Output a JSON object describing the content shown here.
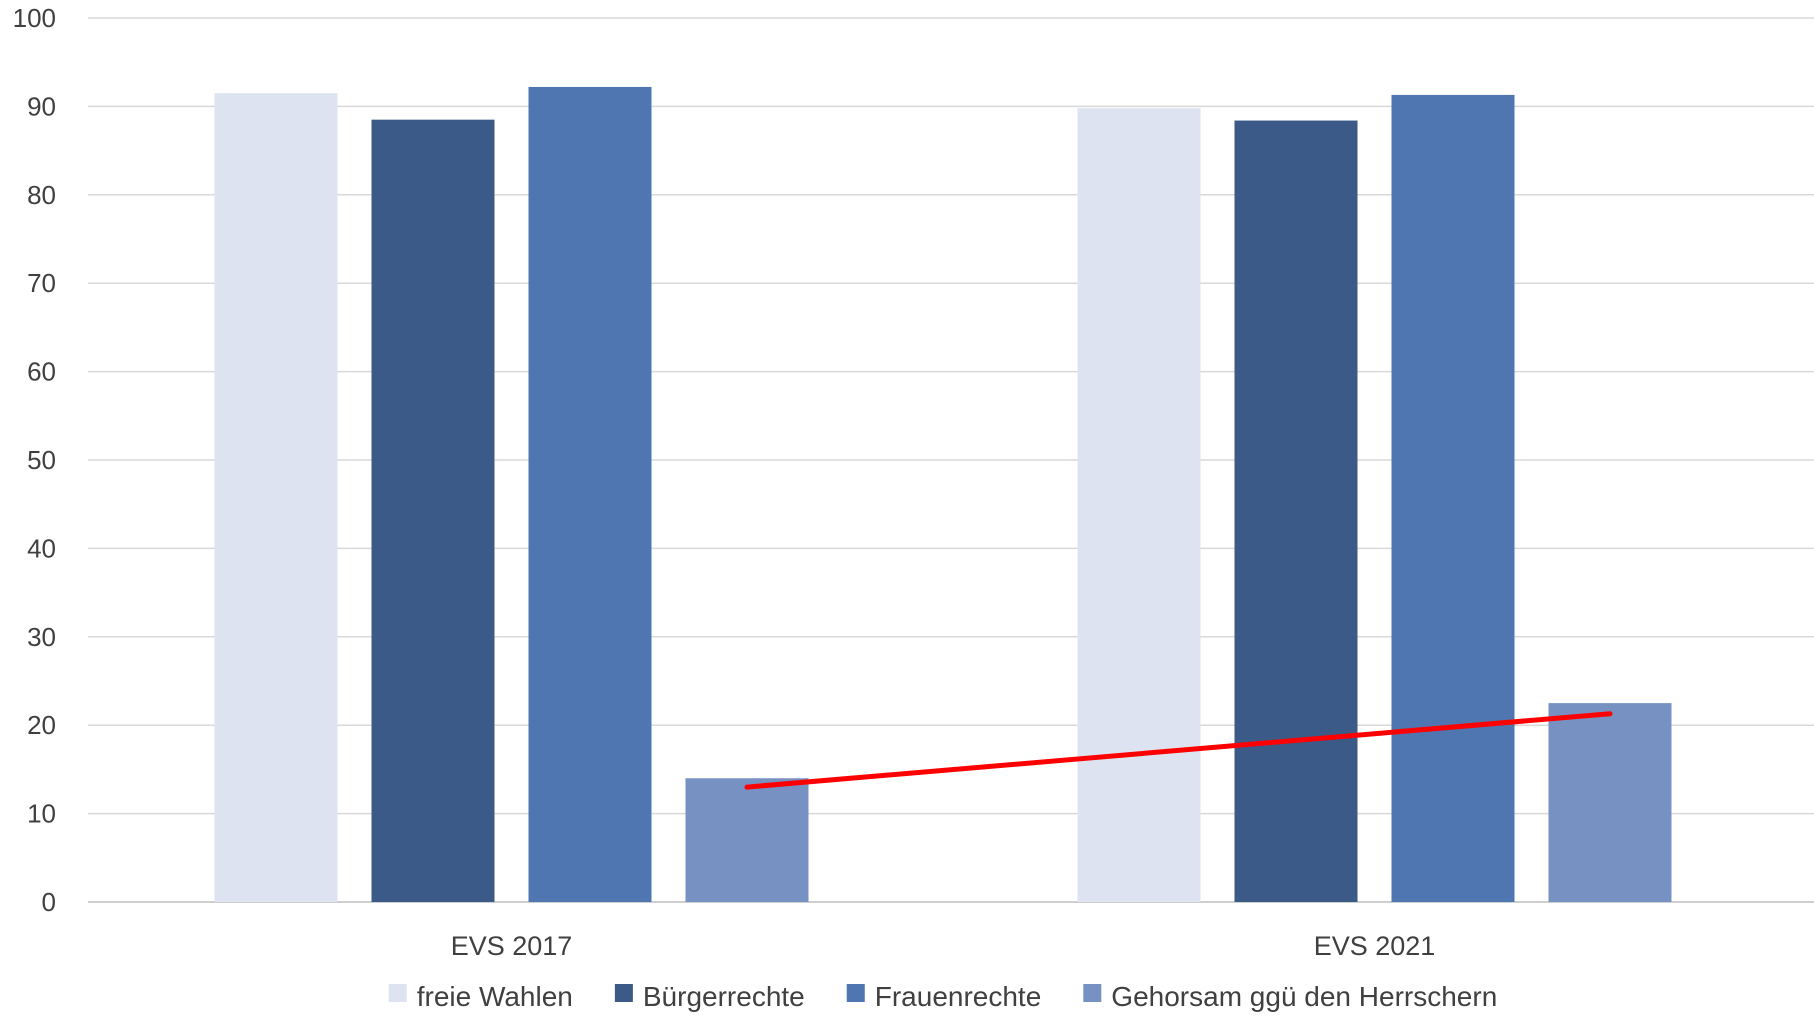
{
  "chart_data": {
    "type": "bar",
    "title": "",
    "xlabel": "",
    "ylabel": "",
    "categories": [
      "EVS 2017",
      "EVS 2021"
    ],
    "series": [
      {
        "name": "freie Wahlen",
        "values": [
          91.5,
          89.8
        ],
        "color": "#DDE3F0"
      },
      {
        "name": "Bürgerrechte",
        "values": [
          88.5,
          88.4
        ],
        "color": "#3B5A87"
      },
      {
        "name": "Frauenrechte",
        "values": [
          92.2,
          91.3
        ],
        "color": "#4F76B0"
      },
      {
        "name": "Gehorsam ggü den Herrschern",
        "values": [
          14.0,
          22.5
        ],
        "color": "#7891C3"
      }
    ],
    "ylim": [
      0,
      100
    ],
    "yticks": [
      "0",
      "10",
      "20",
      "30",
      "40",
      "50",
      "60",
      "70",
      "80",
      "90",
      "100"
    ],
    "grid": true,
    "legend": "bottom",
    "annotation": {
      "type": "trend-line",
      "color": "#FF0000",
      "from": {
        "category": "EVS 2017",
        "series": "Gehorsam ggü den Herrschern",
        "value": 13
      },
      "to": {
        "category": "EVS 2021",
        "series": "Gehorsam ggü den Herrschern",
        "value": 21.3
      }
    }
  }
}
